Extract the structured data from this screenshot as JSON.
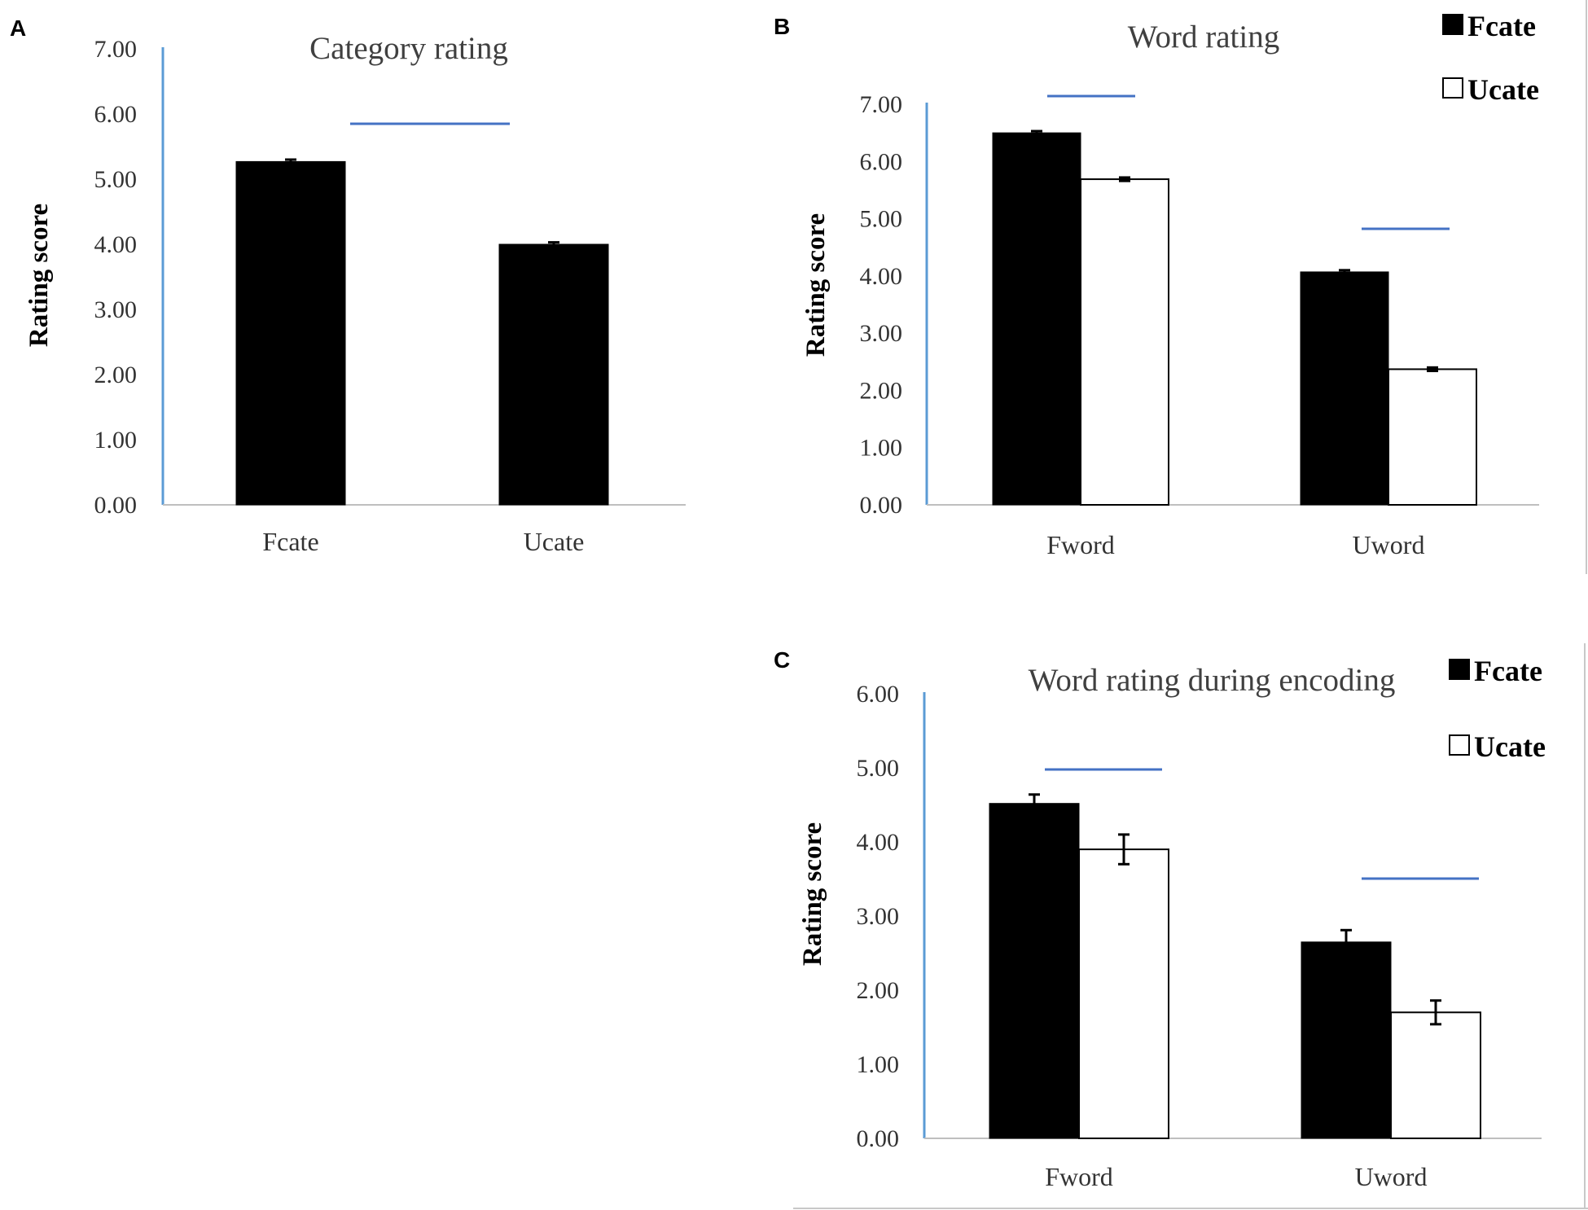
{
  "colors": {
    "axis": "#5B9BD5",
    "sigbar": "#4472C4",
    "fill_a": "#000000",
    "fill_b": "#ffffff"
  },
  "chart_data": [
    {
      "panel": "A",
      "type": "bar",
      "title": "Category rating",
      "xlabel": "",
      "ylabel": "Rating score",
      "ylim": [
        0,
        7
      ],
      "ytick_labels": [
        "0.00",
        "1.00",
        "2.00",
        "3.00",
        "4.00",
        "5.00",
        "6.00",
        "7.00"
      ],
      "categories": [
        "Fcate",
        "Ucate"
      ],
      "series": [
        {
          "name": "",
          "fill": "black",
          "values": [
            5.27,
            4.0
          ],
          "errors": [
            0.03,
            0.03
          ]
        }
      ],
      "legend": [],
      "significance_lines": 1
    },
    {
      "panel": "B",
      "type": "bar",
      "title": "Word rating",
      "xlabel": "",
      "ylabel": "Rating score",
      "ylim": [
        0,
        7
      ],
      "ytick_labels": [
        "0.00",
        "1.00",
        "2.00",
        "3.00",
        "4.00",
        "5.00",
        "6.00",
        "7.00"
      ],
      "categories": [
        "Fword",
        "Uword"
      ],
      "series": [
        {
          "name": "Fcate",
          "fill": "black",
          "values": [
            6.5,
            4.07
          ],
          "errors": [
            0.03,
            0.03
          ]
        },
        {
          "name": "Ucate",
          "fill": "white",
          "values": [
            5.69,
            2.37
          ],
          "errors": [
            0.03,
            0.03
          ]
        }
      ],
      "legend": [
        "Fcate",
        "Ucate"
      ],
      "legend_position": "top-right",
      "significance_lines": 2
    },
    {
      "panel": "C",
      "type": "bar",
      "title": "Word rating during encoding",
      "xlabel": "",
      "ylabel": "Rating score",
      "ylim": [
        0,
        6
      ],
      "ytick_labels": [
        "0.00",
        "1.00",
        "2.00",
        "3.00",
        "4.00",
        "5.00",
        "6.00"
      ],
      "categories": [
        "Fword",
        "Uword"
      ],
      "series": [
        {
          "name": "Fcate",
          "fill": "black",
          "values": [
            4.52,
            2.65
          ],
          "errors": [
            0.12,
            0.16
          ]
        },
        {
          "name": "Ucate",
          "fill": "white",
          "values": [
            3.9,
            1.7
          ],
          "errors": [
            0.2,
            0.16
          ]
        }
      ],
      "legend": [
        "Fcate",
        "Ucate"
      ],
      "legend_position": "top-right",
      "significance_lines": 2
    }
  ]
}
